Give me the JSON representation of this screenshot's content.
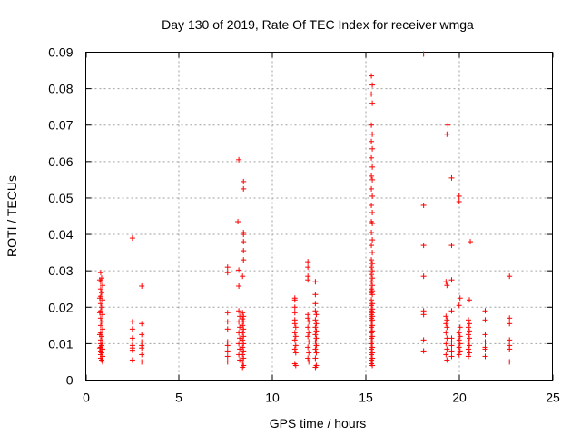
{
  "chart_data": {
    "type": "scatter",
    "title": "Day 130 of 2019, Rate Of TEC Index for receiver wmga",
    "xlabel": "GPS time / hours",
    "ylabel": "ROTI / TECUs",
    "xlim": [
      0,
      25
    ],
    "ylim": [
      0,
      0.09
    ],
    "xticks": [
      0,
      5,
      10,
      15,
      20,
      25
    ],
    "xtick_labels": [
      "0",
      "5",
      "10",
      "15",
      "20",
      "25"
    ],
    "yticks": [
      0,
      0.01,
      0.02,
      0.03,
      0.04,
      0.05,
      0.06,
      0.07,
      0.08,
      0.09
    ],
    "ytick_labels": [
      "0",
      "0.01",
      "0.02",
      "0.03",
      "0.04",
      "0.05",
      "0.06",
      "0.07",
      "0.08",
      "0.09"
    ],
    "grid": true,
    "marker": "+",
    "color": "#ff0000",
    "series": [
      {
        "name": "ROTI",
        "points": [
          [
            0.8,
            0.0295
          ],
          [
            0.85,
            0.028
          ],
          [
            0.8,
            0.027
          ],
          [
            0.9,
            0.026
          ],
          [
            0.8,
            0.025
          ],
          [
            0.85,
            0.024
          ],
          [
            0.8,
            0.023
          ],
          [
            0.9,
            0.022
          ],
          [
            0.8,
            0.021
          ],
          [
            0.85,
            0.02
          ],
          [
            0.8,
            0.019
          ],
          [
            0.9,
            0.018
          ],
          [
            0.8,
            0.017
          ],
          [
            0.85,
            0.016
          ],
          [
            0.8,
            0.015
          ],
          [
            0.9,
            0.014
          ],
          [
            0.8,
            0.013
          ],
          [
            0.85,
            0.012
          ],
          [
            0.8,
            0.011
          ],
          [
            0.9,
            0.0105
          ],
          [
            0.8,
            0.01
          ],
          [
            0.85,
            0.0095
          ],
          [
            0.8,
            0.009
          ],
          [
            0.9,
            0.0085
          ],
          [
            0.8,
            0.008
          ],
          [
            0.85,
            0.0075
          ],
          [
            0.8,
            0.007
          ],
          [
            0.9,
            0.0065
          ],
          [
            0.8,
            0.006
          ],
          [
            0.85,
            0.0055
          ],
          [
            0.9,
            0.005
          ],
          [
            0.75,
            0.0275
          ],
          [
            0.75,
            0.0225
          ],
          [
            0.75,
            0.0185
          ],
          [
            0.75,
            0.0125
          ],
          [
            0.75,
            0.0088
          ],
          [
            2.5,
            0.039
          ],
          [
            2.5,
            0.016
          ],
          [
            2.5,
            0.014
          ],
          [
            2.5,
            0.0115
          ],
          [
            2.5,
            0.0095
          ],
          [
            2.5,
            0.0088
          ],
          [
            2.5,
            0.0082
          ],
          [
            2.5,
            0.0055
          ],
          [
            3.0,
            0.0258
          ],
          [
            3.0,
            0.0155
          ],
          [
            3.0,
            0.0125
          ],
          [
            3.0,
            0.0105
          ],
          [
            3.0,
            0.0095
          ],
          [
            3.0,
            0.0088
          ],
          [
            3.0,
            0.007
          ],
          [
            3.0,
            0.005
          ],
          [
            7.6,
            0.031
          ],
          [
            7.6,
            0.0295
          ],
          [
            7.6,
            0.0185
          ],
          [
            7.6,
            0.016
          ],
          [
            7.6,
            0.014
          ],
          [
            7.6,
            0.0105
          ],
          [
            7.6,
            0.0095
          ],
          [
            7.6,
            0.008
          ],
          [
            7.6,
            0.0065
          ],
          [
            7.6,
            0.005
          ],
          [
            8.2,
            0.0605
          ],
          [
            8.15,
            0.0435
          ],
          [
            8.2,
            0.0302
          ],
          [
            8.2,
            0.0258
          ],
          [
            8.2,
            0.019
          ],
          [
            8.25,
            0.0175
          ],
          [
            8.2,
            0.016
          ],
          [
            8.25,
            0.0145
          ],
          [
            8.2,
            0.013
          ],
          [
            8.25,
            0.0115
          ],
          [
            8.2,
            0.01
          ],
          [
            8.25,
            0.0085
          ],
          [
            8.2,
            0.007
          ],
          [
            8.25,
            0.0055
          ],
          [
            8.45,
            0.0545
          ],
          [
            8.45,
            0.0525
          ],
          [
            8.45,
            0.0405
          ],
          [
            8.45,
            0.04
          ],
          [
            8.45,
            0.038
          ],
          [
            8.45,
            0.0355
          ],
          [
            8.45,
            0.033
          ],
          [
            8.4,
            0.0285
          ],
          [
            8.4,
            0.0185
          ],
          [
            8.45,
            0.0175
          ],
          [
            8.4,
            0.0168
          ],
          [
            8.45,
            0.016
          ],
          [
            8.4,
            0.015
          ],
          [
            8.45,
            0.014
          ],
          [
            8.4,
            0.013
          ],
          [
            8.45,
            0.012
          ],
          [
            8.4,
            0.011
          ],
          [
            8.45,
            0.01
          ],
          [
            8.4,
            0.009
          ],
          [
            8.45,
            0.008
          ],
          [
            8.4,
            0.007
          ],
          [
            8.45,
            0.006
          ],
          [
            8.4,
            0.005
          ],
          [
            8.45,
            0.004
          ],
          [
            8.4,
            0.0035
          ],
          [
            11.2,
            0.0225
          ],
          [
            11.2,
            0.022
          ],
          [
            11.2,
            0.02
          ],
          [
            11.2,
            0.0185
          ],
          [
            11.2,
            0.0165
          ],
          [
            11.2,
            0.0155
          ],
          [
            11.25,
            0.0145
          ],
          [
            11.2,
            0.013
          ],
          [
            11.25,
            0.012
          ],
          [
            11.2,
            0.011
          ],
          [
            11.25,
            0.0095
          ],
          [
            11.2,
            0.0085
          ],
          [
            11.25,
            0.0075
          ],
          [
            11.2,
            0.0045
          ],
          [
            11.25,
            0.004
          ],
          [
            11.9,
            0.0325
          ],
          [
            11.9,
            0.031
          ],
          [
            11.9,
            0.0285
          ],
          [
            11.9,
            0.0275
          ],
          [
            11.9,
            0.018
          ],
          [
            11.9,
            0.017
          ],
          [
            11.95,
            0.016
          ],
          [
            11.9,
            0.0145
          ],
          [
            11.95,
            0.013
          ],
          [
            11.9,
            0.012
          ],
          [
            11.95,
            0.0105
          ],
          [
            11.9,
            0.009
          ],
          [
            11.95,
            0.0075
          ],
          [
            11.9,
            0.006
          ],
          [
            11.95,
            0.005
          ],
          [
            12.3,
            0.027
          ],
          [
            12.3,
            0.0235
          ],
          [
            12.3,
            0.021
          ],
          [
            12.3,
            0.019
          ],
          [
            12.35,
            0.018
          ],
          [
            12.3,
            0.0165
          ],
          [
            12.35,
            0.0155
          ],
          [
            12.3,
            0.0145
          ],
          [
            12.35,
            0.0135
          ],
          [
            12.3,
            0.0125
          ],
          [
            12.35,
            0.0115
          ],
          [
            12.3,
            0.0105
          ],
          [
            12.35,
            0.0095
          ],
          [
            12.3,
            0.0085
          ],
          [
            12.35,
            0.0075
          ],
          [
            12.3,
            0.006
          ],
          [
            12.35,
            0.004
          ],
          [
            12.3,
            0.0035
          ],
          [
            15.3,
            0.0835
          ],
          [
            15.35,
            0.081
          ],
          [
            15.3,
            0.0785
          ],
          [
            15.35,
            0.076
          ],
          [
            15.3,
            0.07
          ],
          [
            15.35,
            0.0675
          ],
          [
            15.3,
            0.0655
          ],
          [
            15.35,
            0.0635
          ],
          [
            15.3,
            0.061
          ],
          [
            15.35,
            0.0585
          ],
          [
            15.3,
            0.056
          ],
          [
            15.35,
            0.055
          ],
          [
            15.3,
            0.0525
          ],
          [
            15.35,
            0.0505
          ],
          [
            15.3,
            0.048
          ],
          [
            15.35,
            0.046
          ],
          [
            15.3,
            0.0435
          ],
          [
            15.35,
            0.043
          ],
          [
            15.3,
            0.0405
          ],
          [
            15.35,
            0.0385
          ],
          [
            15.3,
            0.037
          ],
          [
            15.35,
            0.035
          ],
          [
            15.3,
            0.033
          ],
          [
            15.35,
            0.032
          ],
          [
            15.3,
            0.031
          ],
          [
            15.35,
            0.03
          ],
          [
            15.3,
            0.029
          ],
          [
            15.35,
            0.028
          ],
          [
            15.3,
            0.027
          ],
          [
            15.35,
            0.026
          ],
          [
            15.3,
            0.025
          ],
          [
            15.35,
            0.0245
          ],
          [
            15.3,
            0.024
          ],
          [
            15.35,
            0.0235
          ],
          [
            15.3,
            0.022
          ],
          [
            15.35,
            0.021
          ],
          [
            15.3,
            0.0205
          ],
          [
            15.35,
            0.0195
          ],
          [
            15.3,
            0.019
          ],
          [
            15.35,
            0.0185
          ],
          [
            15.3,
            0.018
          ],
          [
            15.35,
            0.0175
          ],
          [
            15.3,
            0.017
          ],
          [
            15.35,
            0.0165
          ],
          [
            15.3,
            0.016
          ],
          [
            15.35,
            0.015
          ],
          [
            15.3,
            0.0145
          ],
          [
            15.35,
            0.0135
          ],
          [
            15.3,
            0.013
          ],
          [
            15.35,
            0.012
          ],
          [
            15.3,
            0.0115
          ],
          [
            15.35,
            0.0105
          ],
          [
            15.3,
            0.01
          ],
          [
            15.35,
            0.009
          ],
          [
            15.3,
            0.0085
          ],
          [
            15.35,
            0.0075
          ],
          [
            15.3,
            0.007
          ],
          [
            15.35,
            0.006
          ],
          [
            15.3,
            0.0055
          ],
          [
            15.35,
            0.005
          ],
          [
            15.3,
            0.0045
          ],
          [
            15.35,
            0.004
          ],
          [
            18.1,
            0.0895
          ],
          [
            18.1,
            0.048
          ],
          [
            18.1,
            0.037
          ],
          [
            18.1,
            0.0285
          ],
          [
            18.1,
            0.019
          ],
          [
            18.1,
            0.018
          ],
          [
            18.1,
            0.011
          ],
          [
            18.1,
            0.008
          ],
          [
            19.4,
            0.07
          ],
          [
            19.35,
            0.0675
          ],
          [
            19.3,
            0.027
          ],
          [
            19.35,
            0.026
          ],
          [
            19.3,
            0.0175
          ],
          [
            19.35,
            0.0165
          ],
          [
            19.3,
            0.0155
          ],
          [
            19.35,
            0.0145
          ],
          [
            19.3,
            0.013
          ],
          [
            19.35,
            0.0115
          ],
          [
            19.3,
            0.01
          ],
          [
            19.35,
            0.0085
          ],
          [
            19.3,
            0.007
          ],
          [
            19.35,
            0.0055
          ],
          [
            19.6,
            0.0555
          ],
          [
            19.6,
            0.037
          ],
          [
            19.6,
            0.0275
          ],
          [
            19.6,
            0.019
          ],
          [
            19.6,
            0.0115
          ],
          [
            19.6,
            0.0105
          ],
          [
            19.6,
            0.0095
          ],
          [
            19.6,
            0.008
          ],
          [
            19.6,
            0.0065
          ],
          [
            20.0,
            0.0505
          ],
          [
            20.0,
            0.049
          ],
          [
            20.05,
            0.0225
          ],
          [
            20.0,
            0.0205
          ],
          [
            20.05,
            0.0145
          ],
          [
            20.0,
            0.013
          ],
          [
            20.05,
            0.012
          ],
          [
            20.0,
            0.011
          ],
          [
            20.05,
            0.01
          ],
          [
            20.0,
            0.009
          ],
          [
            20.05,
            0.008
          ],
          [
            20.0,
            0.007
          ],
          [
            20.6,
            0.038
          ],
          [
            20.55,
            0.022
          ],
          [
            20.5,
            0.0165
          ],
          [
            20.55,
            0.0155
          ],
          [
            20.5,
            0.0145
          ],
          [
            20.55,
            0.0135
          ],
          [
            20.5,
            0.0125
          ],
          [
            20.55,
            0.0115
          ],
          [
            20.5,
            0.0105
          ],
          [
            20.55,
            0.0095
          ],
          [
            20.5,
            0.0085
          ],
          [
            20.55,
            0.0075
          ],
          [
            20.5,
            0.0065
          ],
          [
            21.4,
            0.019
          ],
          [
            21.4,
            0.0165
          ],
          [
            21.4,
            0.0125
          ],
          [
            21.4,
            0.0105
          ],
          [
            21.4,
            0.009
          ],
          [
            21.4,
            0.0085
          ],
          [
            21.4,
            0.0065
          ],
          [
            22.7,
            0.0285
          ],
          [
            22.7,
            0.017
          ],
          [
            22.7,
            0.0155
          ],
          [
            22.7,
            0.011
          ],
          [
            22.7,
            0.0095
          ],
          [
            22.7,
            0.0085
          ],
          [
            22.7,
            0.005
          ]
        ]
      }
    ]
  }
}
